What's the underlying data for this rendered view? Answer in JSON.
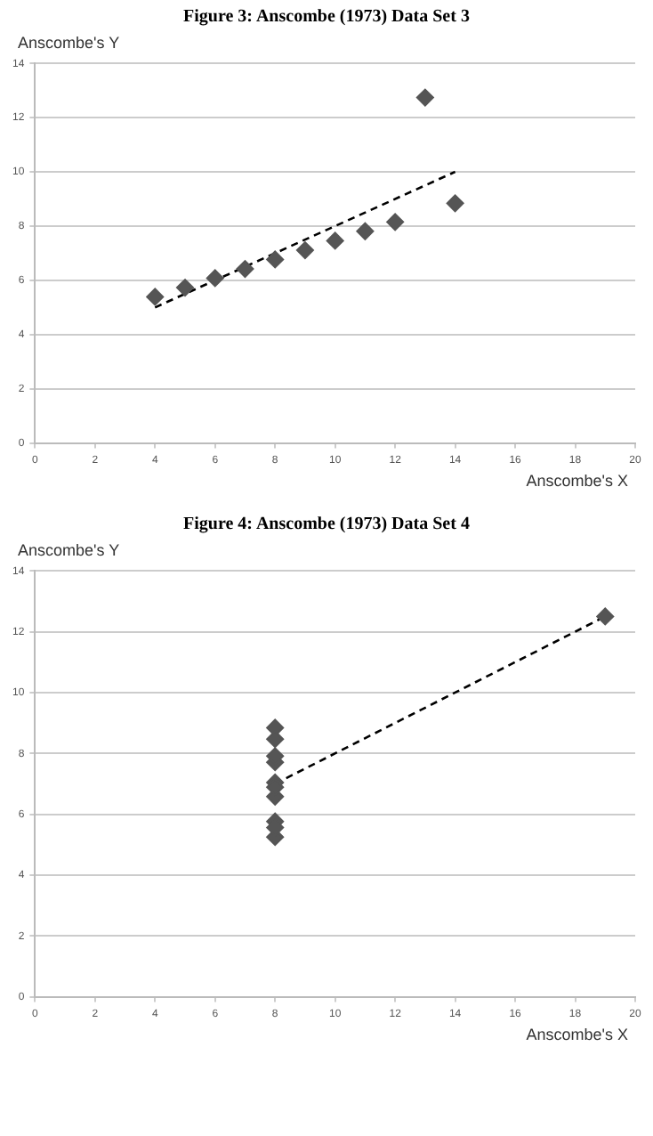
{
  "chart_data": [
    {
      "type": "scatter",
      "title": "Figure 3:  Anscombe (1973) Data Set 3",
      "xlabel": "Anscombe's X",
      "ylabel": "Anscombe's Y",
      "xlim": [
        0,
        20
      ],
      "xticks": [
        0,
        2,
        4,
        6,
        8,
        10,
        12,
        14,
        16,
        18,
        20
      ],
      "ylim": [
        0,
        14
      ],
      "yticks": [
        0,
        2,
        4,
        6,
        8,
        10,
        12,
        14
      ],
      "grid": "y",
      "legend": false,
      "marker": "diamond",
      "series": [
        {
          "type": "scatter",
          "color": "#555555",
          "x": [
            10,
            8,
            13,
            9,
            11,
            14,
            6,
            4,
            12,
            7,
            5
          ],
          "values": [
            7.46,
            6.77,
            12.74,
            7.11,
            7.81,
            8.84,
            6.08,
            5.39,
            8.15,
            6.42,
            5.73
          ]
        },
        {
          "type": "line",
          "color": "#000000",
          "line_style": "dashed",
          "marker": "none",
          "x": [
            4,
            14
          ],
          "values": [
            5,
            10
          ]
        }
      ]
    },
    {
      "type": "scatter",
      "title": "Figure 4:  Anscombe (1973) Data Set 4",
      "xlabel": "Anscombe's X",
      "ylabel": "Anscombe's Y",
      "xlim": [
        0,
        20
      ],
      "xticks": [
        0,
        2,
        4,
        6,
        8,
        10,
        12,
        14,
        16,
        18,
        20
      ],
      "ylim": [
        0,
        14
      ],
      "yticks": [
        0,
        2,
        4,
        6,
        8,
        10,
        12,
        14
      ],
      "grid": "y",
      "legend": false,
      "marker": "diamond",
      "series": [
        {
          "type": "scatter",
          "color": "#555555",
          "x": [
            8,
            8,
            8,
            8,
            8,
            8,
            8,
            19,
            8,
            8,
            8
          ],
          "values": [
            6.58,
            5.76,
            7.71,
            8.84,
            8.47,
            7.04,
            5.25,
            12.5,
            5.56,
            7.91,
            6.89
          ]
        },
        {
          "type": "line",
          "color": "#000000",
          "line_style": "dashed",
          "marker": "none",
          "x": [
            8,
            19
          ],
          "values": [
            7,
            12.5
          ]
        }
      ]
    }
  ]
}
